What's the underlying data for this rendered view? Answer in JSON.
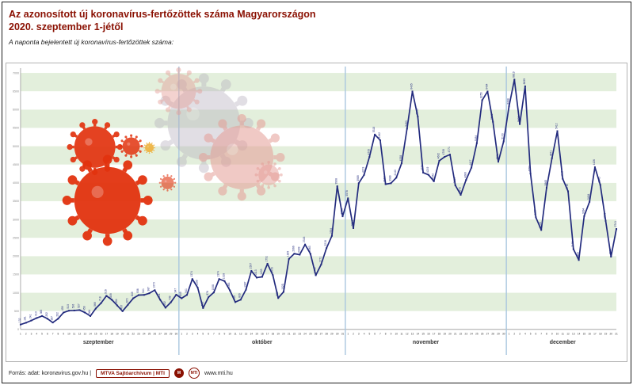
{
  "header": {
    "title_line1": "Az azonosított új koronavírus-fertőzöttek száma Magyarországon",
    "title_line2": "2020. szeptember 1-jétől",
    "subtitle": "A naponta bejelentett új koronavírus-fertőzöttek száma:"
  },
  "chart_data": {
    "type": "line",
    "title": "Az azonosított új koronavírus-fertőzöttek száma Magyarországon 2020. szeptember 1-jétől",
    "xlabel": "",
    "ylabel": "",
    "ylim": [
      0,
      7000
    ],
    "y_tick_step": 500,
    "grid": "horizontal-bands",
    "legend": "none",
    "line_color": "#232b7e",
    "band_color": "#e3efdc",
    "separator_color": "#a9c6df",
    "axis_color": "#999999",
    "months": [
      {
        "name": "szeptember",
        "days": 30,
        "values": [
          132,
          181,
          241,
          310,
          365,
          292,
          187,
          292,
          459,
          510,
          516,
          527,
          459,
          364,
          569,
          718,
          916,
          809,
          654,
          497,
          673,
          849,
          936,
          941,
          987,
          1070,
          811,
          592,
          739,
          947
        ]
      },
      {
        "name": "október",
        "days": 31,
        "values": [
          849,
          941,
          1374,
          1139,
          583,
          876,
          1008,
          1374,
          1318,
          1063,
          745,
          809,
          1087,
          1597,
          1413,
          1433,
          1791,
          1478,
          855,
          1025,
          1925,
          2066,
          2039,
          2316,
          2063,
          1478,
          1771,
          2219,
          2554,
          3908,
          3086
        ]
      },
      {
        "name": "november",
        "days": 30,
        "values": [
          3578,
          2764,
          3989,
          4219,
          4709,
          5318,
          5162,
          3963,
          3989,
          4140,
          4538,
          5480,
          6495,
          5809,
          4279,
          4219,
          4042,
          4602,
          4709,
          4771,
          3931,
          3672,
          4080,
          4417,
          5084,
          6255,
          6494,
          5668,
          4576,
          5133
        ]
      },
      {
        "name": "december",
        "days": 21,
        "values": [
          6088,
          6819,
          5603,
          6635,
          4253,
          3057,
          2713,
          3865,
          4671,
          5412,
          4112,
          3767,
          2189,
          1893,
          3094,
          3484,
          4426,
          3945,
          2965,
          1984,
          2741
        ]
      }
    ]
  },
  "decor": {
    "virus_red": "#e2330f",
    "virus_pink": "#e59d96",
    "virus_gray": "#b6afbc",
    "virus_orange": "#efb23c"
  },
  "footer": {
    "source": "Forrás: adat: koronavirus.gov.hu |",
    "archive": "MTVA Sajtóarchívum | MTI",
    "logo1": "M",
    "logo2": "MTI",
    "website": "www.mti.hu"
  }
}
